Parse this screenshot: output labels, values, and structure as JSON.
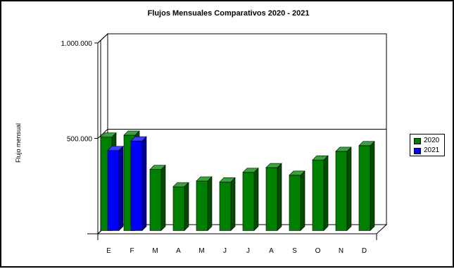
{
  "chart_data": {
    "type": "bar",
    "title": "Flujos Mensuales Comparativos 2020 - 2021",
    "ylabel": "Flujo mensual",
    "xlabel": "",
    "categories": [
      "E",
      "F",
      "M",
      "A",
      "M",
      "J",
      "J",
      "A",
      "S",
      "O",
      "N",
      "D"
    ],
    "y_ticks": [
      {
        "value": 1000000,
        "label": "1.000.000"
      },
      {
        "value": 500000,
        "label": "500.000"
      }
    ],
    "ylim": [
      0,
      1000000
    ],
    "grid": true,
    "legend_position": "right",
    "series": [
      {
        "name": "2020",
        "color": "#008000",
        "values": [
          490000,
          500000,
          320000,
          230000,
          260000,
          255000,
          305000,
          330000,
          290000,
          370000,
          415000,
          445000
        ]
      },
      {
        "name": "2021",
        "color": "#0000ff",
        "values": [
          420000,
          470000,
          null,
          null,
          null,
          null,
          null,
          null,
          null,
          null,
          null,
          null
        ]
      }
    ]
  }
}
